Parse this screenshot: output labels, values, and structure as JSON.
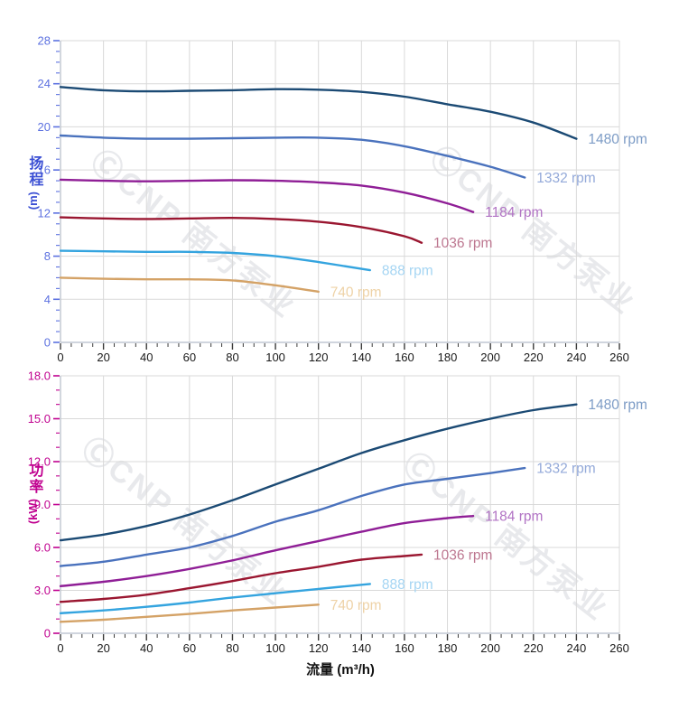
{
  "watermark": {
    "text": "ⒸCNP 南方泵业"
  },
  "colors": {
    "grid": "#d9d9d9",
    "axis_line": "#b5bcc9",
    "x_tick": "#3a3a3a",
    "x_tick_label": "#1a1a1a",
    "head_axis": "#5c71e0",
    "head_title": "#3c50d4",
    "power_axis": "#c0008f",
    "power_title": "#c0008f"
  },
  "chart_data": [
    {
      "type": "line",
      "title": "",
      "ylabel": "扬程 (m)",
      "ylabel_cn": "扬程",
      "ylabel_unit": "(m)",
      "xlabel": "",
      "xlim": [
        0,
        260
      ],
      "ylim": [
        0,
        28
      ],
      "x_major": 20,
      "x_minor": 5,
      "y_major": 4,
      "y_minor": 1,
      "grid": true,
      "legend_position": "right-of-curve-end",
      "x_tick_labels": [
        "0",
        "20",
        "40",
        "60",
        "80",
        "100",
        "120",
        "140",
        "160",
        "180",
        "200",
        "220",
        "240",
        "260"
      ],
      "y_tick_labels": [
        "28",
        "24",
        "20",
        "16",
        "12",
        "8",
        "4",
        "0"
      ],
      "axis_color": "#5c71e0",
      "series": [
        {
          "name": "1480 rpm",
          "color": "#1b4a74",
          "label_color": "#7d9cc6",
          "x": [
            0,
            20,
            40,
            60,
            80,
            100,
            120,
            140,
            160,
            180,
            200,
            220,
            240
          ],
          "y": [
            23.7,
            23.4,
            23.3,
            23.35,
            23.4,
            23.5,
            23.45,
            23.25,
            22.8,
            22.1,
            21.4,
            20.4,
            18.9
          ]
        },
        {
          "name": "1332 rpm",
          "color": "#4a72bd",
          "label_color": "#93a9d9",
          "x": [
            0,
            20,
            40,
            60,
            80,
            100,
            120,
            140,
            160,
            180,
            200,
            216
          ],
          "y": [
            19.2,
            19.0,
            18.9,
            18.9,
            18.95,
            19.0,
            19.0,
            18.8,
            18.2,
            17.3,
            16.3,
            15.3
          ]
        },
        {
          "name": "1184 rpm",
          "color": "#8f1e96",
          "label_color": "#b173c4",
          "x": [
            0,
            20,
            40,
            60,
            80,
            100,
            120,
            140,
            160,
            180,
            192
          ],
          "y": [
            15.1,
            15.0,
            14.95,
            15.0,
            15.05,
            15.0,
            14.85,
            14.55,
            13.9,
            12.9,
            12.1
          ]
        },
        {
          "name": "1036 rpm",
          "color": "#9a1630",
          "label_color": "#bd7790",
          "x": [
            0,
            20,
            40,
            60,
            80,
            100,
            120,
            140,
            160,
            168
          ],
          "y": [
            11.6,
            11.5,
            11.45,
            11.5,
            11.55,
            11.45,
            11.2,
            10.7,
            9.85,
            9.25
          ]
        },
        {
          "name": "888 rpm",
          "color": "#34a4df",
          "label_color": "#a5d5f3",
          "x": [
            0,
            20,
            40,
            60,
            80,
            100,
            120,
            144
          ],
          "y": [
            8.5,
            8.45,
            8.4,
            8.4,
            8.3,
            8.0,
            7.45,
            6.7
          ]
        },
        {
          "name": "740 rpm",
          "color": "#d4a266",
          "label_color": "#eed2a6",
          "x": [
            0,
            20,
            40,
            60,
            80,
            100,
            120
          ],
          "y": [
            6.0,
            5.9,
            5.85,
            5.85,
            5.75,
            5.3,
            4.7
          ]
        }
      ]
    },
    {
      "type": "line",
      "title": "",
      "ylabel": "功率 (kW)",
      "ylabel_cn": "功率",
      "ylabel_unit": "(kW)",
      "xlabel": "流量 (m³/h)",
      "xlim": [
        0,
        260
      ],
      "ylim": [
        0,
        18
      ],
      "x_major": 20,
      "x_minor": 5,
      "y_major": 3,
      "y_minor": 1,
      "grid": true,
      "legend_position": "right-of-curve-end",
      "x_tick_labels": [
        "0",
        "20",
        "40",
        "60",
        "80",
        "100",
        "120",
        "140",
        "160",
        "180",
        "200",
        "220",
        "240",
        "260"
      ],
      "y_tick_labels": [
        "18.0",
        "15.0",
        "12.0",
        "9.0",
        "6.0",
        "3.0",
        "0"
      ],
      "axis_color": "#c0008f",
      "series": [
        {
          "name": "1480 rpm",
          "color": "#1b4a74",
          "label_color": "#7d9cc6",
          "x": [
            0,
            20,
            40,
            60,
            80,
            100,
            120,
            140,
            160,
            180,
            200,
            220,
            240
          ],
          "y": [
            6.5,
            6.9,
            7.5,
            8.3,
            9.3,
            10.4,
            11.5,
            12.6,
            13.5,
            14.3,
            15.0,
            15.6,
            16.0
          ]
        },
        {
          "name": "1332 rpm",
          "color": "#4a72bd",
          "label_color": "#93a9d9",
          "x": [
            0,
            20,
            40,
            60,
            80,
            100,
            120,
            140,
            160,
            180,
            200,
            216
          ],
          "y": [
            4.7,
            5.0,
            5.5,
            6.0,
            6.8,
            7.8,
            8.6,
            9.6,
            10.4,
            10.8,
            11.2,
            11.55
          ]
        },
        {
          "name": "1184 rpm",
          "color": "#8f1e96",
          "label_color": "#b173c4",
          "x": [
            0,
            20,
            40,
            60,
            80,
            100,
            120,
            140,
            160,
            180,
            192
          ],
          "y": [
            3.3,
            3.6,
            4.0,
            4.5,
            5.1,
            5.8,
            6.45,
            7.1,
            7.7,
            8.05,
            8.2
          ]
        },
        {
          "name": "1036 rpm",
          "color": "#9a1630",
          "label_color": "#bd7790",
          "x": [
            0,
            20,
            40,
            60,
            80,
            100,
            120,
            140,
            160,
            168
          ],
          "y": [
            2.2,
            2.4,
            2.7,
            3.15,
            3.65,
            4.2,
            4.65,
            5.15,
            5.4,
            5.5
          ]
        },
        {
          "name": "888 rpm",
          "color": "#34a4df",
          "label_color": "#a5d5f3",
          "x": [
            0,
            20,
            40,
            60,
            80,
            100,
            120,
            144
          ],
          "y": [
            1.4,
            1.6,
            1.85,
            2.15,
            2.5,
            2.8,
            3.1,
            3.45
          ]
        },
        {
          "name": "740 rpm",
          "color": "#d4a266",
          "label_color": "#eed2a6",
          "x": [
            0,
            20,
            40,
            60,
            80,
            100,
            120
          ],
          "y": [
            0.8,
            0.95,
            1.15,
            1.35,
            1.6,
            1.8,
            2.0
          ]
        }
      ]
    }
  ]
}
